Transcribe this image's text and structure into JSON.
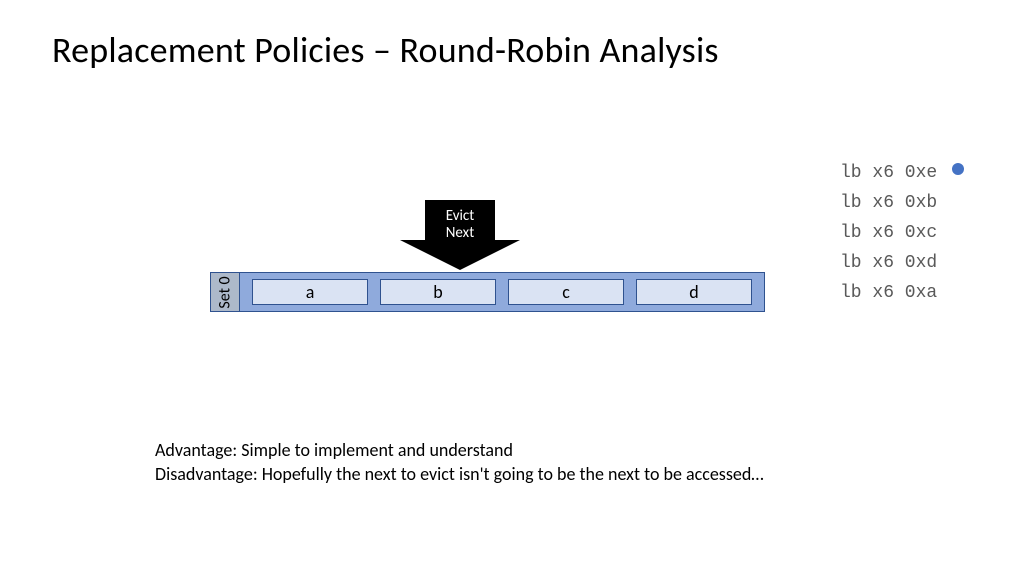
{
  "title": "Replacement Policies – Round-Robin Analysis",
  "instructions": [
    {
      "text": "lb x6 0xe",
      "marker": true
    },
    {
      "text": "lb x6 0xb",
      "marker": false
    },
    {
      "text": "lb x6 0xc",
      "marker": false
    },
    {
      "text": "lb x6 0xd",
      "marker": false
    },
    {
      "text": "lb x6 0xa",
      "marker": false
    }
  ],
  "marker_color": "#4472c4",
  "cache": {
    "set_label": "Set 0",
    "set_label_bg": "#adb9ca",
    "set_label_border": "#2f528f",
    "outer_bg": "#8faadc",
    "outer_border": "#2f528f",
    "block_bg": "#dae3f3",
    "block_border": "#2f528f",
    "blocks": [
      "a",
      "b",
      "c",
      "d"
    ]
  },
  "evict": {
    "line1": "Evict",
    "line2": "Next",
    "fill": "#000000"
  },
  "footer": {
    "line1": "Advantage: Simple to implement and understand",
    "line2": "Disadvantage: Hopefully the next to evict isn't going to be the next to be accessed…"
  }
}
